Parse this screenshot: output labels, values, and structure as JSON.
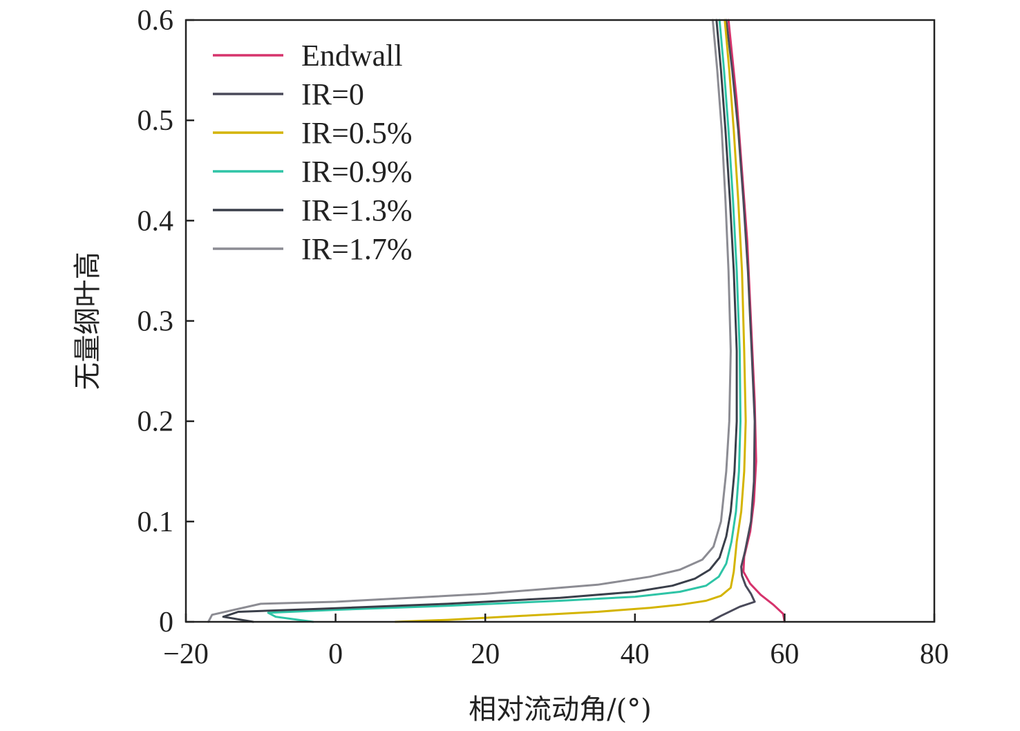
{
  "chart_data": {
    "type": "line",
    "xlabel": "相对流动角/(°)",
    "ylabel": "无量纲叶高",
    "xlim": [
      -20,
      80
    ],
    "ylim": [
      0,
      0.6
    ],
    "x_ticks": [
      -20,
      0,
      20,
      40,
      60,
      80
    ],
    "x_tick_labels": [
      "−20",
      "0",
      "20",
      "40",
      "60",
      "80"
    ],
    "y_ticks": [
      0,
      0.1,
      0.2,
      0.3,
      0.4,
      0.5,
      0.6
    ],
    "y_tick_labels": [
      "0",
      "0.1",
      "0.2",
      "0.3",
      "0.4",
      "0.5",
      "0.6"
    ],
    "grid": false,
    "legend_position": "top-left",
    "series": [
      {
        "name": "Endwall",
        "color": "#d6336c",
        "points": [
          [
            60.0,
            0.0
          ],
          [
            59.8,
            0.008
          ],
          [
            58.5,
            0.017
          ],
          [
            56.8,
            0.027
          ],
          [
            55.4,
            0.038
          ],
          [
            54.5,
            0.05
          ],
          [
            54.6,
            0.065
          ],
          [
            55.4,
            0.09
          ],
          [
            55.9,
            0.12
          ],
          [
            56.2,
            0.16
          ],
          [
            56.0,
            0.22
          ],
          [
            55.5,
            0.3
          ],
          [
            55.0,
            0.38
          ],
          [
            54.3,
            0.45
          ],
          [
            53.6,
            0.52
          ],
          [
            52.5,
            0.6
          ]
        ]
      },
      {
        "name": "IR=0",
        "color": "#4a4a5a",
        "points": [
          [
            50.0,
            0.0
          ],
          [
            51.5,
            0.006
          ],
          [
            54.0,
            0.015
          ],
          [
            56.0,
            0.02
          ],
          [
            55.5,
            0.028
          ],
          [
            54.8,
            0.036
          ],
          [
            54.3,
            0.046
          ],
          [
            54.2,
            0.055
          ],
          [
            54.7,
            0.07
          ],
          [
            55.5,
            0.1
          ],
          [
            55.9,
            0.14
          ],
          [
            56.0,
            0.2
          ],
          [
            55.6,
            0.27
          ],
          [
            55.1,
            0.35
          ],
          [
            54.5,
            0.42
          ],
          [
            53.8,
            0.49
          ],
          [
            53.0,
            0.55
          ],
          [
            52.2,
            0.6
          ]
        ]
      },
      {
        "name": "IR=0.5%",
        "color": "#d4b400",
        "points": [
          [
            8.0,
            0.0
          ],
          [
            15.0,
            0.002
          ],
          [
            25.0,
            0.006
          ],
          [
            35.0,
            0.01
          ],
          [
            42.0,
            0.014
          ],
          [
            46.0,
            0.017
          ],
          [
            49.5,
            0.021
          ],
          [
            51.5,
            0.026
          ],
          [
            52.8,
            0.034
          ],
          [
            53.2,
            0.05
          ],
          [
            53.6,
            0.08
          ],
          [
            54.2,
            0.11
          ],
          [
            54.6,
            0.15
          ],
          [
            54.8,
            0.2
          ],
          [
            54.6,
            0.27
          ],
          [
            54.3,
            0.35
          ],
          [
            53.8,
            0.42
          ],
          [
            53.2,
            0.49
          ],
          [
            52.6,
            0.55
          ],
          [
            52.0,
            0.6
          ]
        ]
      },
      {
        "name": "IR=0.9%",
        "color": "#2ec4a6",
        "points": [
          [
            -3.0,
            0.0
          ],
          [
            -8.0,
            0.005
          ],
          [
            -9.0,
            0.009
          ],
          [
            0.0,
            0.012
          ],
          [
            15.0,
            0.016
          ],
          [
            30.0,
            0.021
          ],
          [
            40.0,
            0.025
          ],
          [
            46.0,
            0.03
          ],
          [
            49.5,
            0.036
          ],
          [
            51.2,
            0.045
          ],
          [
            52.2,
            0.058
          ],
          [
            52.9,
            0.08
          ],
          [
            53.5,
            0.11
          ],
          [
            53.9,
            0.15
          ],
          [
            54.1,
            0.2
          ],
          [
            54.0,
            0.27
          ],
          [
            53.6,
            0.35
          ],
          [
            53.1,
            0.42
          ],
          [
            52.5,
            0.49
          ],
          [
            51.9,
            0.55
          ],
          [
            51.3,
            0.6
          ]
        ]
      },
      {
        "name": "IR=1.3%",
        "color": "#3a3f4a",
        "points": [
          [
            -11.0,
            0.0
          ],
          [
            -15.0,
            0.005
          ],
          [
            -13.0,
            0.01
          ],
          [
            -2.0,
            0.013
          ],
          [
            15.0,
            0.018
          ],
          [
            30.0,
            0.024
          ],
          [
            40.0,
            0.03
          ],
          [
            45.0,
            0.036
          ],
          [
            48.0,
            0.043
          ],
          [
            50.0,
            0.052
          ],
          [
            51.3,
            0.064
          ],
          [
            52.2,
            0.085
          ],
          [
            52.8,
            0.11
          ],
          [
            53.3,
            0.15
          ],
          [
            53.6,
            0.2
          ],
          [
            53.6,
            0.27
          ],
          [
            53.2,
            0.35
          ],
          [
            52.7,
            0.42
          ],
          [
            52.1,
            0.49
          ],
          [
            51.5,
            0.55
          ],
          [
            50.9,
            0.6
          ]
        ]
      },
      {
        "name": "IR=1.7%",
        "color": "#8c8c93",
        "points": [
          [
            -17.0,
            0.0
          ],
          [
            -16.5,
            0.007
          ],
          [
            -10.0,
            0.018
          ],
          [
            0.0,
            0.02
          ],
          [
            20.0,
            0.028
          ],
          [
            35.0,
            0.037
          ],
          [
            42.0,
            0.045
          ],
          [
            46.0,
            0.052
          ],
          [
            49.0,
            0.062
          ],
          [
            50.5,
            0.075
          ],
          [
            51.5,
            0.1
          ],
          [
            52.2,
            0.15
          ],
          [
            52.6,
            0.2
          ],
          [
            52.8,
            0.27
          ],
          [
            52.5,
            0.35
          ],
          [
            52.1,
            0.42
          ],
          [
            51.6,
            0.49
          ],
          [
            51.0,
            0.55
          ],
          [
            50.4,
            0.6
          ]
        ]
      }
    ]
  }
}
